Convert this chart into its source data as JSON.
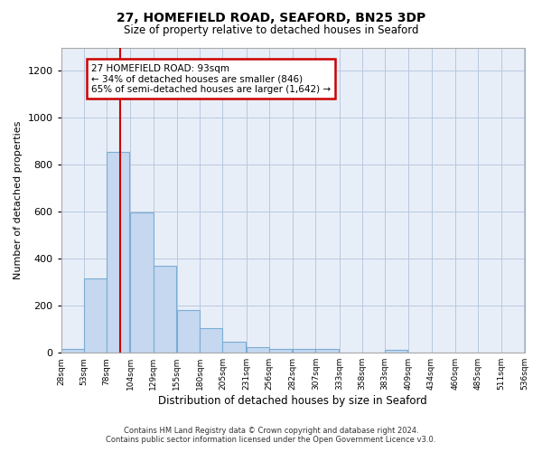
{
  "title": "27, HOMEFIELD ROAD, SEAFORD, BN25 3DP",
  "subtitle": "Size of property relative to detached houses in Seaford",
  "xlabel": "Distribution of detached houses by size in Seaford",
  "ylabel": "Number of detached properties",
  "bar_color": "#c5d8f0",
  "bar_edge_color": "#7aadd4",
  "background_color": "#e8eef8",
  "grid_color": "#b8c8e0",
  "footer_line1": "Contains HM Land Registry data © Crown copyright and database right 2024.",
  "footer_line2": "Contains public sector information licensed under the Open Government Licence v3.0.",
  "annotation_text": "27 HOMEFIELD ROAD: 93sqm\n← 34% of detached houses are smaller (846)\n65% of semi-detached houses are larger (1,642) →",
  "annotation_box_color": "#cc0000",
  "marker_line_color": "#cc0000",
  "bins": [
    28,
    53,
    78,
    104,
    129,
    155,
    180,
    205,
    231,
    256,
    282,
    307,
    333,
    358,
    383,
    409,
    434,
    460,
    485,
    511,
    536
  ],
  "bar_heights": [
    15,
    315,
    855,
    598,
    370,
    183,
    105,
    47,
    22,
    18,
    18,
    18,
    0,
    0,
    13,
    0,
    0,
    0,
    0,
    0
  ],
  "tick_labels": [
    "28sqm",
    "53sqm",
    "78sqm",
    "104sqm",
    "129sqm",
    "155sqm",
    "180sqm",
    "205sqm",
    "231sqm",
    "256sqm",
    "282sqm",
    "307sqm",
    "333sqm",
    "358sqm",
    "383sqm",
    "409sqm",
    "434sqm",
    "460sqm",
    "485sqm",
    "511sqm",
    "536sqm"
  ],
  "ylim": [
    0,
    1300
  ],
  "yticks": [
    0,
    200,
    400,
    600,
    800,
    1000,
    1200
  ]
}
